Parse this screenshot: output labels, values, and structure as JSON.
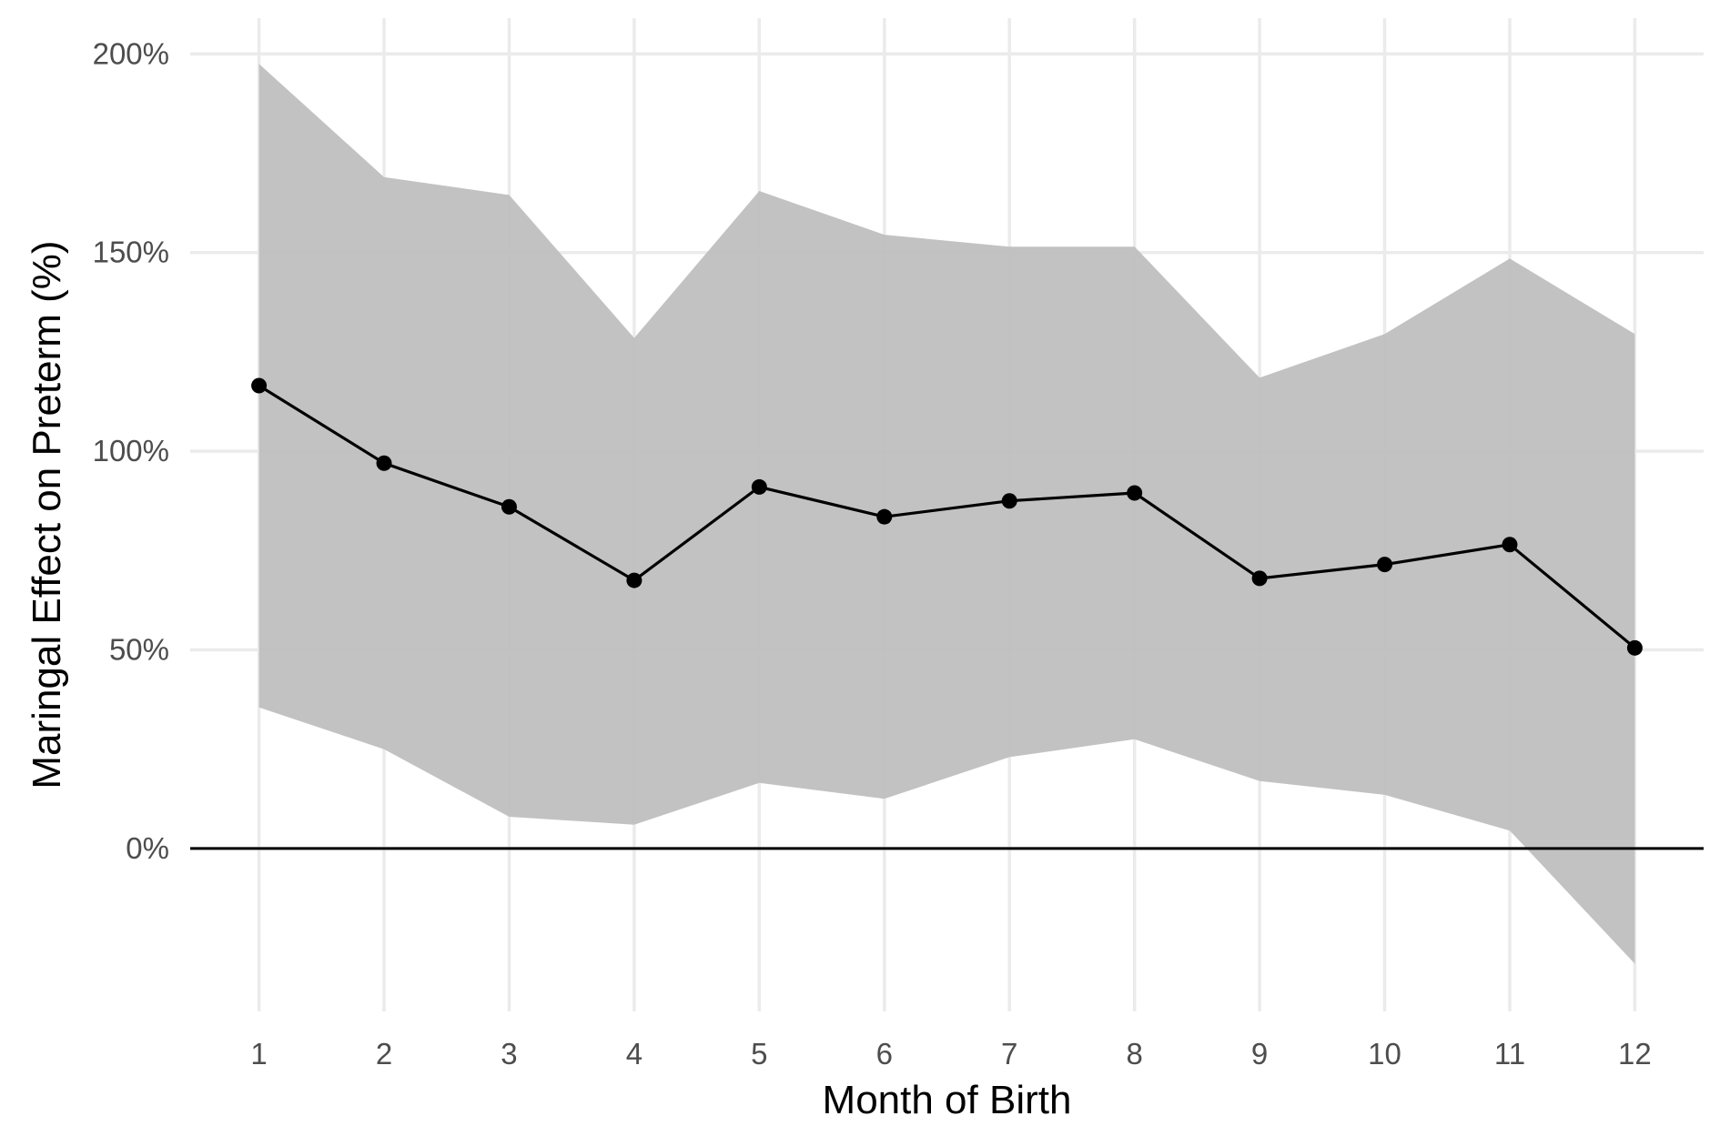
{
  "chart_data": {
    "type": "line",
    "x": [
      1,
      2,
      3,
      4,
      5,
      6,
      7,
      8,
      9,
      10,
      11,
      12
    ],
    "series": [
      {
        "values": [
          116.5,
          97,
          86,
          67.5,
          91,
          83.5,
          87.5,
          89.5,
          68,
          71.5,
          76.5,
          50.5
        ],
        "ci_lower": [
          35.5,
          25,
          8,
          6,
          16.5,
          12.5,
          23,
          27.5,
          17,
          13.5,
          4.5,
          -29
        ],
        "ci_upper": [
          197.5,
          169,
          164.5,
          128.5,
          165.5,
          154.5,
          151.5,
          151.5,
          118.5,
          129.5,
          148.5,
          129.5
        ]
      }
    ],
    "xlabel": "Month of Birth",
    "ylabel": "Maringal Effect on Preterm (%)",
    "xlim": [
      0.45,
      12.55
    ],
    "ylim": [
      -41,
      209
    ],
    "x_ticks": [
      "1",
      "2",
      "3",
      "4",
      "5",
      "6",
      "7",
      "8",
      "9",
      "10",
      "11",
      "12"
    ],
    "y_ticks": [
      0,
      50,
      100,
      150,
      200
    ],
    "y_tick_labels": [
      "0%",
      "50%",
      "100%",
      "150%",
      "200%"
    ],
    "reference_line_y": 0,
    "grid": true,
    "legend": "none",
    "colors": {
      "line": "#000000",
      "ribbon": "#bdbdbd",
      "grid": "#ebebeb",
      "tick_text": "#4d4d4d",
      "title_text": "#000000"
    }
  }
}
